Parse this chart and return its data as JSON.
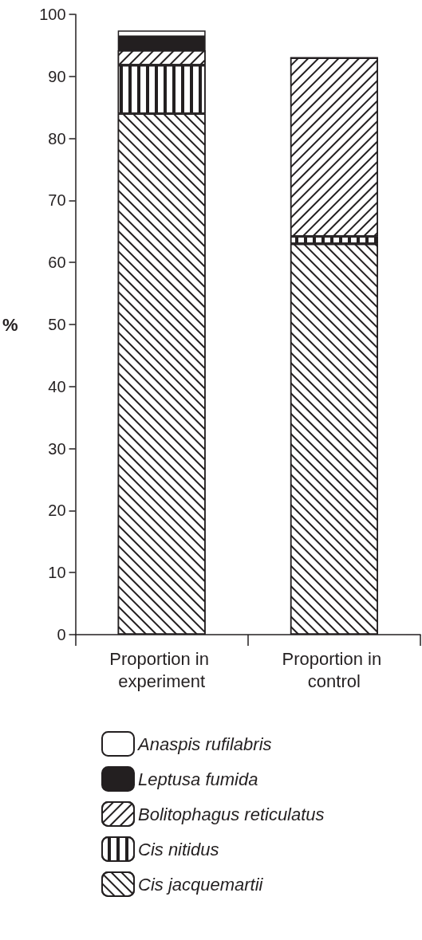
{
  "chart_data": {
    "type": "bar",
    "stacked": true,
    "ylabel": "%",
    "categories": [
      "Proportion in experiment",
      "Proportion in control"
    ],
    "series": [
      {
        "name": "Cis jacquemartii",
        "color": "#ffffff",
        "values": [
          84,
          63
        ]
      },
      {
        "name": "Cis nitidus",
        "color": "#ffffff",
        "values": [
          7.8,
          1.2
        ]
      },
      {
        "name": "Bolitophagus reticulatus",
        "color": "#ffffff",
        "values": [
          2.4,
          28.8
        ]
      },
      {
        "name": "Leptusa fumida",
        "color": "#231f20",
        "values": [
          2.2,
          0
        ]
      },
      {
        "name": "Anaspis rufilabris",
        "color": "#ffffff",
        "values": [
          1.0,
          0
        ]
      }
    ],
    "ylim": [
      0,
      100
    ],
    "yticks": [
      0,
      10,
      20,
      30,
      40,
      50,
      60,
      70,
      80,
      90,
      100
    ],
    "grid": false,
    "legend": "bottom"
  }
}
